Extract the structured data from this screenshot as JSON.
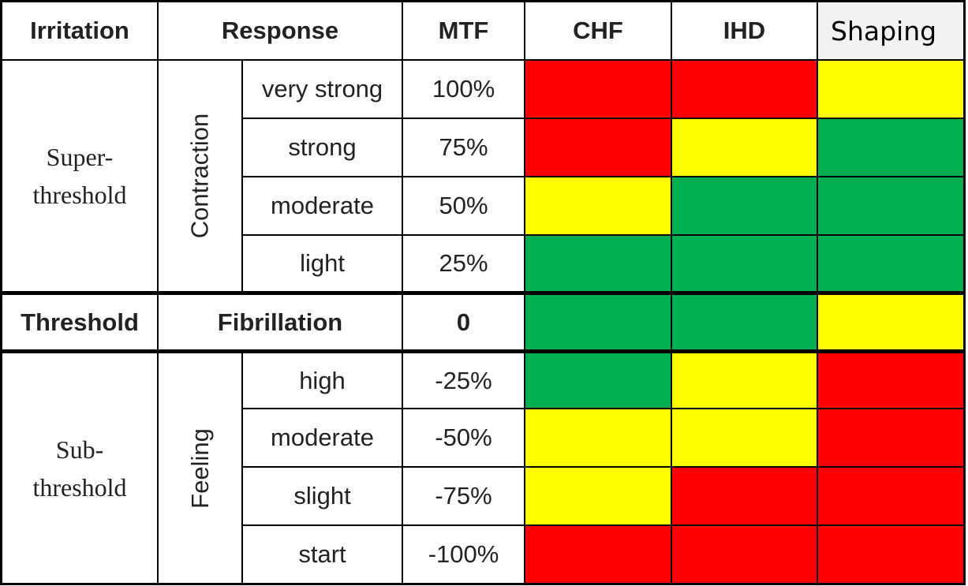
{
  "header": {
    "irritation": "Irritation",
    "response": "Response",
    "mtf": "MTF",
    "columns": [
      "CHF",
      "IHD",
      "Shaping"
    ]
  },
  "sections": [
    {
      "irritation": [
        "Super-",
        "threshold"
      ],
      "response": "Contraction",
      "rows": [
        {
          "level": "very strong",
          "mtf": "100%",
          "colors": [
            "#ff0000",
            "#ff0000",
            "#ffff00"
          ]
        },
        {
          "level": "strong",
          "mtf": "75%",
          "colors": [
            "#ff0000",
            "#ffff00",
            "#00b050"
          ]
        },
        {
          "level": "moderate",
          "mtf": "50%",
          "colors": [
            "#ffff00",
            "#00b050",
            "#00b050"
          ]
        },
        {
          "level": "light",
          "mtf": "25%",
          "colors": [
            "#00b050",
            "#00b050",
            "#00b050"
          ]
        }
      ]
    },
    {
      "irritation": [
        "Threshold"
      ],
      "response": "Fibrillation",
      "rows": [
        {
          "mtf": "0",
          "colors": [
            "#00b050",
            "#00b050",
            "#ffff00"
          ]
        }
      ]
    },
    {
      "irritation": [
        "Sub-",
        "threshold"
      ],
      "response": "Feeling",
      "rows": [
        {
          "level": "high",
          "mtf": "-25%",
          "colors": [
            "#00b050",
            "#ffff00",
            "#ff0000"
          ]
        },
        {
          "level": "moderate",
          "mtf": "-50%",
          "colors": [
            "#ffff00",
            "#ffff00",
            "#ff0000"
          ]
        },
        {
          "level": "slight",
          "mtf": "-75%",
          "colors": [
            "#ffff00",
            "#ff0000",
            "#ff0000"
          ]
        },
        {
          "level": "start",
          "mtf": "-100%",
          "colors": [
            "#ff0000",
            "#ff0000",
            "#ff0000"
          ]
        }
      ]
    }
  ]
}
